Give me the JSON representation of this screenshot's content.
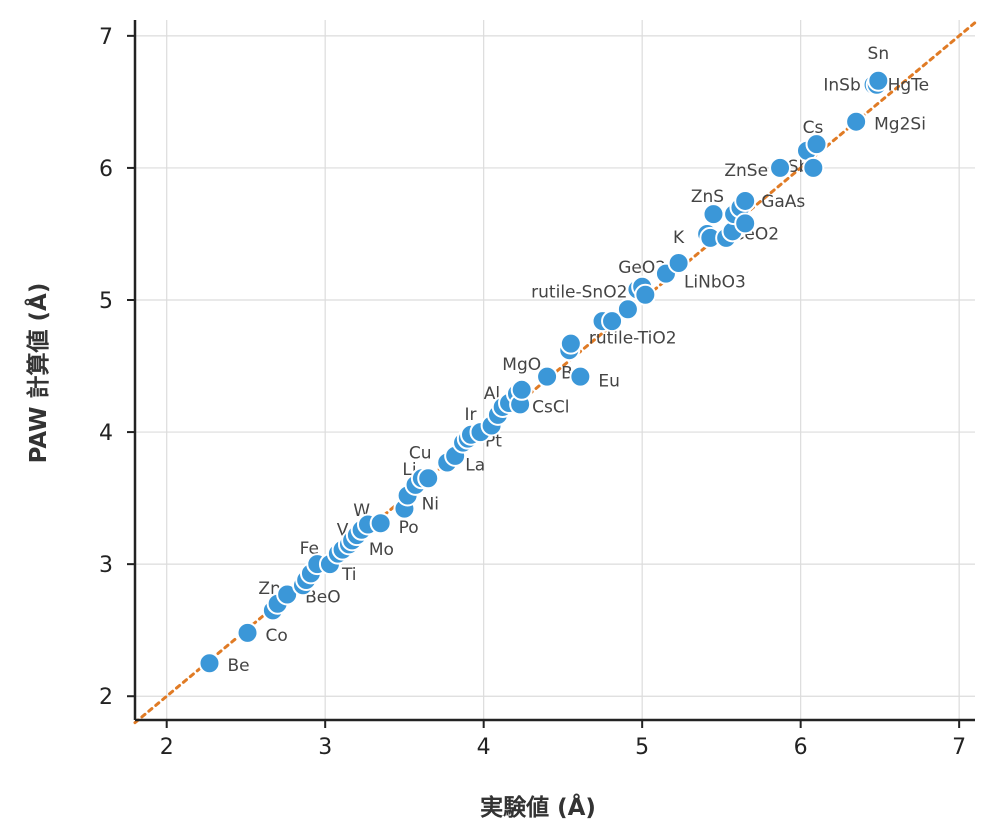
{
  "chart_data": {
    "type": "scatter",
    "xlabel": "実験値 (Å)",
    "ylabel": "PAW 計算値 (Å)",
    "xlim": [
      1.8,
      7.1
    ],
    "ylim": [
      1.82,
      7.12
    ],
    "xticks": [
      "2",
      "3",
      "4",
      "5",
      "6",
      "7"
    ],
    "yticks": [
      "2",
      "3",
      "4",
      "5",
      "6",
      "7"
    ],
    "grid": true,
    "legend": "none",
    "reference_line": {
      "style": "dotted",
      "x": [
        1.8,
        7.1
      ],
      "y": [
        1.8,
        7.1
      ],
      "color": "#e07b25"
    },
    "point_color": "#3b97d8",
    "points": [
      {
        "x": 2.27,
        "y": 2.25,
        "label": "Be"
      },
      {
        "x": 2.51,
        "y": 2.48,
        "label": "Co"
      },
      {
        "x": 2.67,
        "y": 2.65,
        "label": ""
      },
      {
        "x": 2.7,
        "y": 2.7,
        "label": "Zn"
      },
      {
        "x": 2.76,
        "y": 2.77,
        "label": "BeO"
      },
      {
        "x": 2.86,
        "y": 2.84,
        "label": ""
      },
      {
        "x": 2.88,
        "y": 2.88,
        "label": ""
      },
      {
        "x": 2.91,
        "y": 2.93,
        "label": ""
      },
      {
        "x": 2.95,
        "y": 3.0,
        "label": "Fe"
      },
      {
        "x": 3.03,
        "y": 3.0,
        "label": "Ti"
      },
      {
        "x": 3.08,
        "y": 3.08,
        "label": ""
      },
      {
        "x": 3.11,
        "y": 3.11,
        "label": "V"
      },
      {
        "x": 3.15,
        "y": 3.15,
        "label": ""
      },
      {
        "x": 3.17,
        "y": 3.18,
        "label": ""
      },
      {
        "x": 3.2,
        "y": 3.22,
        "label": "Mo"
      },
      {
        "x": 3.23,
        "y": 3.26,
        "label": "W"
      },
      {
        "x": 3.27,
        "y": 3.3,
        "label": ""
      },
      {
        "x": 3.35,
        "y": 3.31,
        "label": "Po"
      },
      {
        "x": 3.5,
        "y": 3.42,
        "label": ""
      },
      {
        "x": 3.52,
        "y": 3.52,
        "label": "Ni"
      },
      {
        "x": 3.57,
        "y": 3.6,
        "label": "Li"
      },
      {
        "x": 3.61,
        "y": 3.65,
        "label": ""
      },
      {
        "x": 3.65,
        "y": 3.65,
        "label": "Cu"
      },
      {
        "x": 3.77,
        "y": 3.77,
        "label": "La"
      },
      {
        "x": 3.82,
        "y": 3.82,
        "label": ""
      },
      {
        "x": 3.87,
        "y": 3.92,
        "label": ""
      },
      {
        "x": 3.9,
        "y": 3.95,
        "label": ""
      },
      {
        "x": 3.92,
        "y": 3.98,
        "label": "Pt"
      },
      {
        "x": 3.98,
        "y": 4.0,
        "label": "Ir"
      },
      {
        "x": 4.05,
        "y": 4.05,
        "label": ""
      },
      {
        "x": 4.09,
        "y": 4.13,
        "label": "Al"
      },
      {
        "x": 4.12,
        "y": 4.19,
        "label": ""
      },
      {
        "x": 4.16,
        "y": 4.22,
        "label": ""
      },
      {
        "x": 4.21,
        "y": 4.29,
        "label": ""
      },
      {
        "x": 4.23,
        "y": 4.21,
        "label": "CsCl"
      },
      {
        "x": 4.24,
        "y": 4.32,
        "label": "MgO"
      },
      {
        "x": 4.4,
        "y": 4.42,
        "label": "Ba"
      },
      {
        "x": 4.54,
        "y": 4.62,
        "label": ""
      },
      {
        "x": 4.55,
        "y": 4.67,
        "label": "rutile-TiO2"
      },
      {
        "x": 4.61,
        "y": 4.42,
        "label": "Eu"
      },
      {
        "x": 4.75,
        "y": 4.84,
        "label": ""
      },
      {
        "x": 4.81,
        "y": 4.84,
        "label": ""
      },
      {
        "x": 4.91,
        "y": 4.93,
        "label": ""
      },
      {
        "x": 4.97,
        "y": 5.08,
        "label": "rutile-SnO2"
      },
      {
        "x": 5.0,
        "y": 5.1,
        "label": "GeO2"
      },
      {
        "x": 5.02,
        "y": 5.04,
        "label": ""
      },
      {
        "x": 5.15,
        "y": 5.2,
        "label": "LiNbO3"
      },
      {
        "x": 5.23,
        "y": 5.28,
        "label": "K"
      },
      {
        "x": 5.41,
        "y": 5.5,
        "label": ""
      },
      {
        "x": 5.43,
        "y": 5.47,
        "label": ""
      },
      {
        "x": 5.45,
        "y": 5.65,
        "label": "ZnS"
      },
      {
        "x": 5.53,
        "y": 5.47,
        "label": ""
      },
      {
        "x": 5.57,
        "y": 5.52,
        "label": "CeO2"
      },
      {
        "x": 5.58,
        "y": 5.65,
        "label": ""
      },
      {
        "x": 5.62,
        "y": 5.7,
        "label": ""
      },
      {
        "x": 5.65,
        "y": 5.58,
        "label": ""
      },
      {
        "x": 5.65,
        "y": 5.75,
        "label": "GaAs"
      },
      {
        "x": 5.87,
        "y": 6.0,
        "label": "ZnSe"
      },
      {
        "x": 6.04,
        "y": 6.13,
        "label": "Cs"
      },
      {
        "x": 6.08,
        "y": 6.0,
        "label": "AlSb"
      },
      {
        "x": 6.1,
        "y": 6.18,
        "label": ""
      },
      {
        "x": 6.35,
        "y": 6.35,
        "label": "Mg2Si"
      },
      {
        "x": 6.46,
        "y": 6.63,
        "label": "HgTe"
      },
      {
        "x": 6.48,
        "y": 6.63,
        "label": "InSb"
      },
      {
        "x": 6.49,
        "y": 6.66,
        "label": "Sn"
      }
    ]
  }
}
